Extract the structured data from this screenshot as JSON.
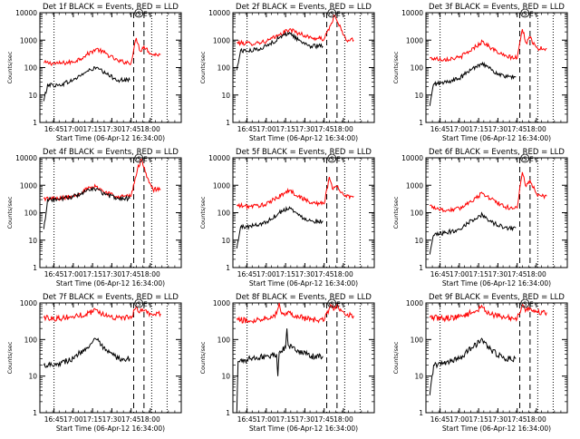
{
  "chart_data": [
    {
      "type": "line",
      "title": "Det 1f BLACK = Events, RED = LLD",
      "ylabel": "Counts/sec",
      "xlabel": "Start Time (06-Apr-12 16:34:00)",
      "xlim": [
        "16:34",
        "18:24"
      ],
      "ylim": [
        1,
        10000
      ],
      "yscale": "log",
      "x_ticks": [
        "16:45",
        "17:00",
        "17:15",
        "17:30",
        "17:45",
        "18:00"
      ],
      "y_ticks": [
        "1",
        "10",
        "100",
        "1000",
        "10000"
      ],
      "markers": {
        "S": "17:51",
        "E": "17:54"
      },
      "vlines_dotted": [
        "16:45",
        "18:01",
        "18:13"
      ],
      "vlines_dashed": [
        "17:47",
        "17:55"
      ],
      "series": [
        {
          "color": "#ff0000",
          "x": [
            "16:37",
            "16:48",
            "17:00",
            "17:08",
            "17:18",
            "17:25",
            "17:35",
            "17:45",
            "17:49",
            "17:52",
            "17:55",
            "18:01",
            "18:08"
          ],
          "values": [
            150,
            140,
            160,
            250,
            480,
            330,
            170,
            150,
            1200,
            400,
            600,
            300,
            300
          ]
        },
        {
          "color": "#000000",
          "x": [
            "16:37",
            "16:40",
            "16:48",
            "17:00",
            "17:10",
            "17:18",
            "17:25",
            "17:35",
            "17:44"
          ],
          "values": [
            6,
            24,
            22,
            35,
            70,
            100,
            60,
            35,
            35
          ]
        }
      ]
    },
    {
      "type": "line",
      "title": "Det 2f BLACK = Events, RED = LLD",
      "ylabel": "Counts/sec",
      "xlabel": "Start Time (06-Apr-12 16:34:00)",
      "xlim": [
        "16:34",
        "18:24"
      ],
      "ylim": [
        1,
        10000
      ],
      "yscale": "log",
      "x_ticks": [
        "16:45",
        "17:00",
        "17:15",
        "17:30",
        "17:45",
        "18:00"
      ],
      "y_ticks": [
        "1",
        "10",
        "100",
        "1000",
        "10000"
      ],
      "markers": {
        "S": "17:51",
        "E": "17:54"
      },
      "vlines_dotted": [
        "16:45",
        "18:01",
        "18:13"
      ],
      "vlines_dashed": [
        "17:47",
        "17:55"
      ],
      "series": [
        {
          "color": "#ff0000",
          "x": [
            "16:37",
            "16:48",
            "17:00",
            "17:10",
            "17:18",
            "17:25",
            "17:35",
            "17:45",
            "17:50",
            "17:53",
            "17:56",
            "18:02",
            "18:08"
          ],
          "values": [
            800,
            750,
            900,
            1500,
            2500,
            1800,
            1200,
            1100,
            3500,
            8000,
            4000,
            1000,
            1000
          ]
        },
        {
          "color": "#000000",
          "x": [
            "16:37",
            "16:40",
            "16:48",
            "17:00",
            "17:10",
            "17:18",
            "17:25",
            "17:35",
            "17:44"
          ],
          "values": [
            80,
            420,
            400,
            600,
            1200,
            1900,
            1000,
            600,
            600
          ]
        }
      ]
    },
    {
      "type": "line",
      "title": "Det 3f BLACK = Events, RED = LLD",
      "ylabel": "Counts/sec",
      "xlabel": "Start Time (06-Apr-12 16:34:00)",
      "xlim": [
        "16:34",
        "18:24"
      ],
      "ylim": [
        1,
        10000
      ],
      "yscale": "log",
      "x_ticks": [
        "16:45",
        "17:00",
        "17:15",
        "17:30",
        "17:45",
        "18:00"
      ],
      "y_ticks": [
        "1",
        "10",
        "100",
        "1000",
        "10000"
      ],
      "markers": {
        "S": "17:51",
        "E": "17:54"
      },
      "vlines_dotted": [
        "16:45",
        "18:01",
        "18:13"
      ],
      "vlines_dashed": [
        "17:47",
        "17:55"
      ],
      "series": [
        {
          "color": "#ff0000",
          "x": [
            "16:37",
            "16:48",
            "17:00",
            "17:08",
            "17:18",
            "17:25",
            "17:35",
            "17:45",
            "17:49",
            "17:52",
            "17:55",
            "18:01",
            "18:08"
          ],
          "values": [
            220,
            200,
            230,
            400,
            900,
            500,
            260,
            220,
            2500,
            800,
            1200,
            500,
            500
          ]
        },
        {
          "color": "#000000",
          "x": [
            "16:37",
            "16:40",
            "16:48",
            "17:00",
            "17:10",
            "17:18",
            "17:25",
            "17:35",
            "17:44"
          ],
          "values": [
            4,
            25,
            28,
            40,
            90,
            150,
            80,
            45,
            45
          ]
        }
      ]
    },
    {
      "type": "line",
      "title": "Det 4f BLACK = Events, RED = LLD",
      "ylabel": "Counts/sec",
      "xlabel": "Start Time (06-Apr-12 16:34:00)",
      "xlim": [
        "16:34",
        "18:24"
      ],
      "ylim": [
        1,
        10000
      ],
      "yscale": "log",
      "x_ticks": [
        "16:45",
        "17:00",
        "17:15",
        "17:30",
        "17:45",
        "18:00"
      ],
      "y_ticks": [
        "1",
        "10",
        "100",
        "1000",
        "10000"
      ],
      "markers": {
        "S": "17:51",
        "E": "17:54"
      },
      "vlines_dotted": [
        "16:45",
        "18:01",
        "18:13"
      ],
      "vlines_dashed": [
        "17:47",
        "17:55"
      ],
      "series": [
        {
          "color": "#ff0000",
          "x": [
            "16:37",
            "16:48",
            "17:00",
            "17:10",
            "17:18",
            "17:25",
            "17:35",
            "17:45",
            "17:50",
            "17:53",
            "17:56",
            "18:02",
            "18:08"
          ],
          "values": [
            330,
            320,
            400,
            700,
            900,
            550,
            400,
            400,
            4000,
            9000,
            3000,
            700,
            700
          ]
        },
        {
          "color": "#000000",
          "x": [
            "16:37",
            "16:40",
            "16:48",
            "17:00",
            "17:10",
            "17:18",
            "17:25",
            "17:35",
            "17:44"
          ],
          "values": [
            25,
            300,
            310,
            380,
            600,
            750,
            450,
            330,
            330
          ]
        }
      ]
    },
    {
      "type": "line",
      "title": "Det 5f BLACK = Events, RED = LLD",
      "ylabel": "Counts/sec",
      "xlabel": "Start Time (06-Apr-12 16:34:00)",
      "xlim": [
        "16:34",
        "18:24"
      ],
      "ylim": [
        1,
        10000
      ],
      "yscale": "log",
      "x_ticks": [
        "16:45",
        "17:00",
        "17:15",
        "17:30",
        "17:45",
        "18:00"
      ],
      "y_ticks": [
        "1",
        "10",
        "100",
        "1000",
        "10000"
      ],
      "markers": {
        "S": "17:51",
        "E": "17:54"
      },
      "vlines_dotted": [
        "16:45",
        "18:01",
        "18:13"
      ],
      "vlines_dashed": [
        "17:47",
        "17:55"
      ],
      "series": [
        {
          "color": "#ff0000",
          "x": [
            "16:37",
            "16:48",
            "17:00",
            "17:08",
            "17:18",
            "17:25",
            "17:35",
            "17:45",
            "17:49",
            "17:52",
            "17:55",
            "18:01",
            "18:08"
          ],
          "values": [
            180,
            170,
            200,
            350,
            650,
            400,
            230,
            210,
            2000,
            700,
            900,
            400,
            400
          ]
        },
        {
          "color": "#000000",
          "x": [
            "16:37",
            "16:40",
            "16:48",
            "17:00",
            "17:10",
            "17:18",
            "17:25",
            "17:35",
            "17:44"
          ],
          "values": [
            5,
            30,
            32,
            45,
            100,
            160,
            80,
            50,
            50
          ]
        }
      ]
    },
    {
      "type": "line",
      "title": "Det 6f BLACK = Events, RED = LLD",
      "ylabel": "Counts/sec",
      "xlabel": "Start Time (06-Apr-12 16:34:00)",
      "xlim": [
        "16:34",
        "18:24"
      ],
      "ylim": [
        1,
        10000
      ],
      "yscale": "log",
      "x_ticks": [
        "16:45",
        "17:00",
        "17:15",
        "17:30",
        "17:45",
        "18:00"
      ],
      "y_ticks": [
        "1",
        "10",
        "100",
        "1000",
        "10000"
      ],
      "markers": {
        "S": "17:51",
        "E": "17:54"
      },
      "vlines_dotted": [
        "16:45",
        "18:01",
        "18:13"
      ],
      "vlines_dashed": [
        "17:47",
        "17:55"
      ],
      "series": [
        {
          "color": "#ff0000",
          "x": [
            "16:37",
            "16:48",
            "17:00",
            "17:08",
            "17:18",
            "17:25",
            "17:35",
            "17:45",
            "17:49",
            "17:52",
            "17:55",
            "18:01",
            "18:08"
          ],
          "values": [
            180,
            120,
            140,
            250,
            500,
            320,
            160,
            150,
            3000,
            900,
            1500,
            400,
            400
          ]
        },
        {
          "color": "#000000",
          "x": [
            "16:37",
            "16:40",
            "16:48",
            "17:00",
            "17:10",
            "17:18",
            "17:25",
            "17:35",
            "17:44"
          ],
          "values": [
            3,
            15,
            18,
            25,
            55,
            85,
            45,
            28,
            28
          ]
        }
      ]
    },
    {
      "type": "line",
      "title": "Det 7f BLACK = Events, RED = LLD",
      "ylabel": "Counts/sec",
      "xlabel": "Start Time (06-Apr-12 16:34:00)",
      "xlim": [
        "16:34",
        "18:24"
      ],
      "ylim": [
        1,
        1000
      ],
      "yscale": "log",
      "x_ticks": [
        "16:45",
        "17:00",
        "17:15",
        "17:30",
        "17:45",
        "18:00"
      ],
      "y_ticks": [
        "1",
        "10",
        "100",
        "1000"
      ],
      "markers": {
        "S": "17:51",
        "E": "17:54"
      },
      "vlines_dotted": [
        "16:45",
        "18:01",
        "18:13"
      ],
      "vlines_dashed": [
        "17:47",
        "17:55"
      ],
      "series": [
        {
          "color": "#ff0000",
          "x": [
            "16:37",
            "16:48",
            "17:00",
            "17:10",
            "17:18",
            "17:25",
            "17:35",
            "17:45",
            "17:49",
            "17:52",
            "17:55",
            "18:01",
            "18:08"
          ],
          "values": [
            400,
            380,
            420,
            500,
            650,
            450,
            400,
            380,
            800,
            600,
            600,
            500,
            500
          ]
        },
        {
          "color": "#000000",
          "x": [
            "16:37",
            "16:48",
            "17:00",
            "17:10",
            "17:18",
            "17:25",
            "17:35",
            "17:44"
          ],
          "values": [
            20,
            22,
            30,
            60,
            100,
            50,
            30,
            30
          ]
        }
      ]
    },
    {
      "type": "line",
      "title": "Det 8f BLACK = Events, RED = LLD",
      "ylabel": "Counts/sec",
      "xlabel": "Start Time (06-Apr-12 16:34:00)",
      "xlim": [
        "16:34",
        "18:24"
      ],
      "ylim": [
        1,
        1000
      ],
      "yscale": "log",
      "x_ticks": [
        "16:45",
        "17:00",
        "17:15",
        "17:30",
        "17:45",
        "18:00"
      ],
      "y_ticks": [
        "1",
        "10",
        "100",
        "1000"
      ],
      "markers": {
        "S": "17:51",
        "E": "17:54"
      },
      "vlines_dotted": [
        "16:45",
        "18:01",
        "18:13"
      ],
      "vlines_dashed": [
        "17:47",
        "17:55"
      ],
      "series": [
        {
          "color": "#ff0000",
          "x": [
            "16:37",
            "16:48",
            "17:00",
            "17:08",
            "17:10",
            "17:12",
            "17:18",
            "17:25",
            "17:35",
            "17:45",
            "17:50",
            "17:53",
            "17:56",
            "18:02",
            "18:08"
          ],
          "values": [
            350,
            320,
            400,
            500,
            1000,
            500,
            550,
            420,
            350,
            330,
            900,
            700,
            800,
            450,
            450
          ]
        },
        {
          "color": "#000000",
          "x": [
            "16:37",
            "16:38",
            "16:48",
            "17:00",
            "17:08",
            "17:09",
            "17:10",
            "17:15",
            "17:16",
            "17:17",
            "17:25",
            "17:35",
            "17:44"
          ],
          "values": [
            1,
            25,
            30,
            35,
            40,
            10,
            45,
            60,
            200,
            70,
            50,
            35,
            35
          ]
        }
      ]
    },
    {
      "type": "line",
      "title": "Det 9f BLACK = Events, RED = LLD",
      "ylabel": "Counts/sec",
      "xlabel": "Start Time (06-Apr-12 16:34:00)",
      "xlim": [
        "16:34",
        "18:24"
      ],
      "ylim": [
        1,
        1000
      ],
      "yscale": "log",
      "x_ticks": [
        "16:45",
        "17:00",
        "17:15",
        "17:30",
        "17:45",
        "18:00"
      ],
      "y_ticks": [
        "1",
        "10",
        "100",
        "1000"
      ],
      "markers": {
        "S": "17:51",
        "E": "17:54"
      },
      "vlines_dotted": [
        "16:45",
        "18:01",
        "18:13"
      ],
      "vlines_dashed": [
        "17:47",
        "17:55"
      ],
      "series": [
        {
          "color": "#ff0000",
          "x": [
            "16:37",
            "16:48",
            "17:00",
            "17:10",
            "17:18",
            "17:25",
            "17:35",
            "17:45",
            "17:49",
            "17:52",
            "17:55",
            "18:01",
            "18:08"
          ],
          "values": [
            400,
            380,
            420,
            550,
            750,
            480,
            400,
            380,
            900,
            650,
            700,
            550,
            550
          ]
        },
        {
          "color": "#000000",
          "x": [
            "16:37",
            "16:40",
            "16:48",
            "17:00",
            "17:10",
            "17:18",
            "17:25",
            "17:35",
            "17:44"
          ],
          "values": [
            3,
            20,
            22,
            30,
            60,
            100,
            50,
            30,
            30
          ]
        }
      ]
    }
  ]
}
